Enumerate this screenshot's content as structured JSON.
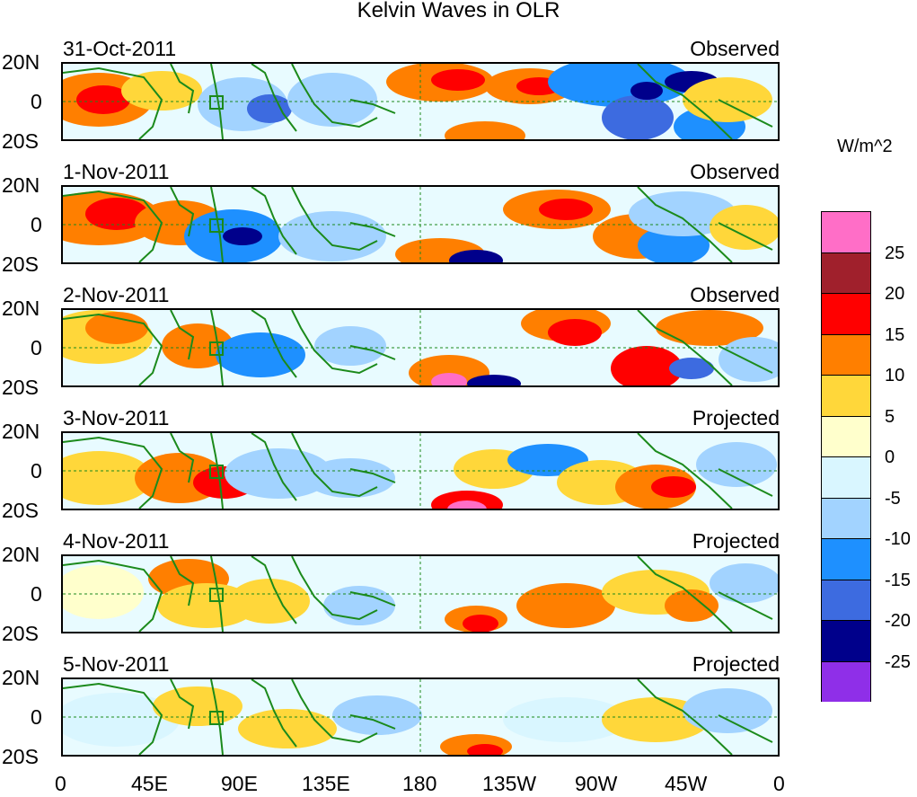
{
  "title": "Kelvin Waves in OLR",
  "units": "W/m^2",
  "lat_labels": [
    "20N",
    "0",
    "20S"
  ],
  "lon_labels": [
    "0",
    "45E",
    "90E",
    "135E",
    "180",
    "135W",
    "90W",
    "45W",
    "0"
  ],
  "panels": [
    {
      "date": "31-Oct-2011",
      "status": "Observed"
    },
    {
      "date": "1-Nov-2011",
      "status": "Observed"
    },
    {
      "date": "2-Nov-2011",
      "status": "Observed"
    },
    {
      "date": "3-Nov-2011",
      "status": "Projected"
    },
    {
      "date": "4-Nov-2011",
      "status": "Projected"
    },
    {
      "date": "5-Nov-2011",
      "status": "Projected"
    }
  ],
  "colorbar": {
    "labels": [
      "25",
      "20",
      "15",
      "10",
      "5",
      "0",
      "-5",
      "-10",
      "-15",
      "-20",
      "-25"
    ],
    "colors": [
      "#ff6ec7",
      "#a0202c",
      "#ff0000",
      "#ff7f00",
      "#ffd73a",
      "#ffffcc",
      "#d9f6ff",
      "#a2d3ff",
      "#1e90ff",
      "#3d6be0",
      "#00008b",
      "#8f2fe8"
    ]
  },
  "colors": {
    "coast": "#1b8a1b",
    "equator": "#1b8a1b"
  }
}
